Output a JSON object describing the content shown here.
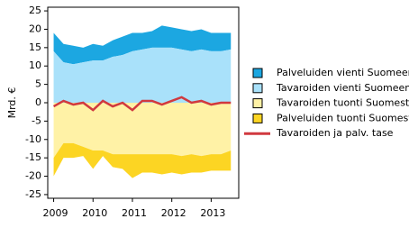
{
  "chart_data": {
    "type": "stacked-area-line",
    "y_label": "Mrd. €",
    "x": [
      2009.0,
      2009.25,
      2009.5,
      2009.75,
      2010.0,
      2010.25,
      2010.5,
      2010.75,
      2011.0,
      2011.25,
      2011.5,
      2011.75,
      2012.0,
      2012.25,
      2012.5,
      2012.75,
      2013.0,
      2013.25,
      2013.5
    ],
    "xlim": [
      2008.85,
      2013.7
    ],
    "xticks": [
      2009,
      2010,
      2011,
      2012,
      2013
    ],
    "ylim": [
      -26,
      26
    ],
    "yticks": [
      -25,
      -20,
      -15,
      -10,
      -5,
      0,
      5,
      10,
      15,
      20,
      25
    ],
    "series": [
      {
        "name": "Palveluiden vienti Suomeen",
        "color": "#1ca7e1",
        "kind": "area",
        "values": [
          5,
          5,
          5,
          4,
          4.5,
          4,
          4.5,
          5,
          5,
          4.5,
          4.5,
          6,
          5.5,
          5.5,
          5.5,
          5.5,
          5,
          5,
          4.5
        ]
      },
      {
        "name": "Tavaroiden vienti Suomeen",
        "color": "#a9e1fa",
        "kind": "area",
        "values": [
          14,
          11,
          10.5,
          11,
          11.5,
          11.5,
          12.5,
          13,
          14,
          14.5,
          15,
          15,
          15,
          14.5,
          14,
          14.5,
          14,
          14,
          14.5
        ]
      },
      {
        "name": "Tavaroiden tuonti Suomesta",
        "color": "#fff2a6",
        "kind": "area",
        "values": [
          -15,
          -11,
          -11,
          -12,
          -13,
          -13,
          -14,
          -14,
          -14,
          -14,
          -14,
          -14,
          -14,
          -14.5,
          -14,
          -14.5,
          -14,
          -14,
          -13
        ]
      },
      {
        "name": "Palveluiden tuonti Suomesta",
        "color": "#fcd523",
        "kind": "area",
        "values": [
          -5,
          -4,
          -4,
          -2.5,
          -5,
          -1.5,
          -3.5,
          -4,
          -6.5,
          -5,
          -5,
          -5.5,
          -5,
          -5,
          -5,
          -4.5,
          -4.5,
          -4.5,
          -5.5
        ]
      },
      {
        "name": "Tavaroiden ja palv. tase",
        "color": "#d0393f",
        "kind": "line",
        "values": [
          -1,
          0.5,
          -0.5,
          0,
          -2,
          0.5,
          -1,
          0,
          -2,
          0.5,
          0.5,
          -0.5,
          0.5,
          1.5,
          0,
          0.5,
          -0.5,
          0,
          0
        ]
      }
    ]
  }
}
